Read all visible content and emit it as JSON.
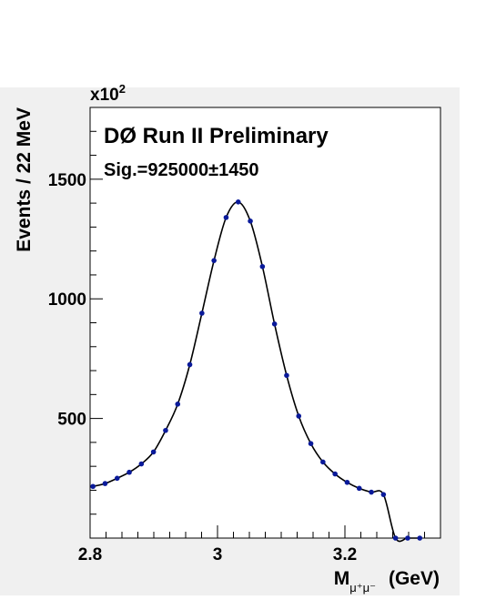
{
  "chart_data": {
    "type": "scatter",
    "title": "",
    "annotations": {
      "experiment": "DØ Run II Preliminary",
      "signal": "Sig.=925000±1450"
    },
    "ylabel": "Events / 22 MeV",
    "yscale_label": "x10",
    "yscale_exponent": "2",
    "xlabel_main": "M",
    "xlabel_sub": "μ⁺μ⁻",
    "xlabel_unit": "(GeV)",
    "xlim": [
      2.8,
      3.35
    ],
    "ylim": [
      0,
      1800
    ],
    "x_ticks": [
      2.8,
      3.0,
      3.2
    ],
    "x_tick_labels": [
      "2.8",
      "3",
      "3.2"
    ],
    "y_ticks": [
      500,
      1000,
      1500
    ],
    "y_tick_labels": [
      "500",
      "1000",
      "1500"
    ],
    "grid": false,
    "legend": "none",
    "marker_color": "#0a1a9a",
    "fit_color": "#000000",
    "series": [
      {
        "x": [
          2.8045,
          2.8235,
          2.8425,
          2.8615,
          2.8805,
          2.8995,
          2.9185,
          2.9375,
          2.9565,
          2.9755,
          2.9945,
          3.0135,
          3.0325,
          3.0515,
          3.0705,
          3.0895,
          3.1085,
          3.1275,
          3.1465,
          3.1655,
          3.1845,
          3.2035,
          3.2225,
          3.2415,
          3.2605,
          3.2795,
          3.2985,
          3.3175
        ],
        "y": [
          216,
          228,
          250,
          275,
          310,
          360,
          450,
          560,
          725,
          940,
          1160,
          1340,
          1405,
          1325,
          1135,
          895,
          680,
          510,
          395,
          318,
          268,
          233,
          208,
          192,
          182,
          0,
          0,
          0
        ]
      }
    ]
  }
}
